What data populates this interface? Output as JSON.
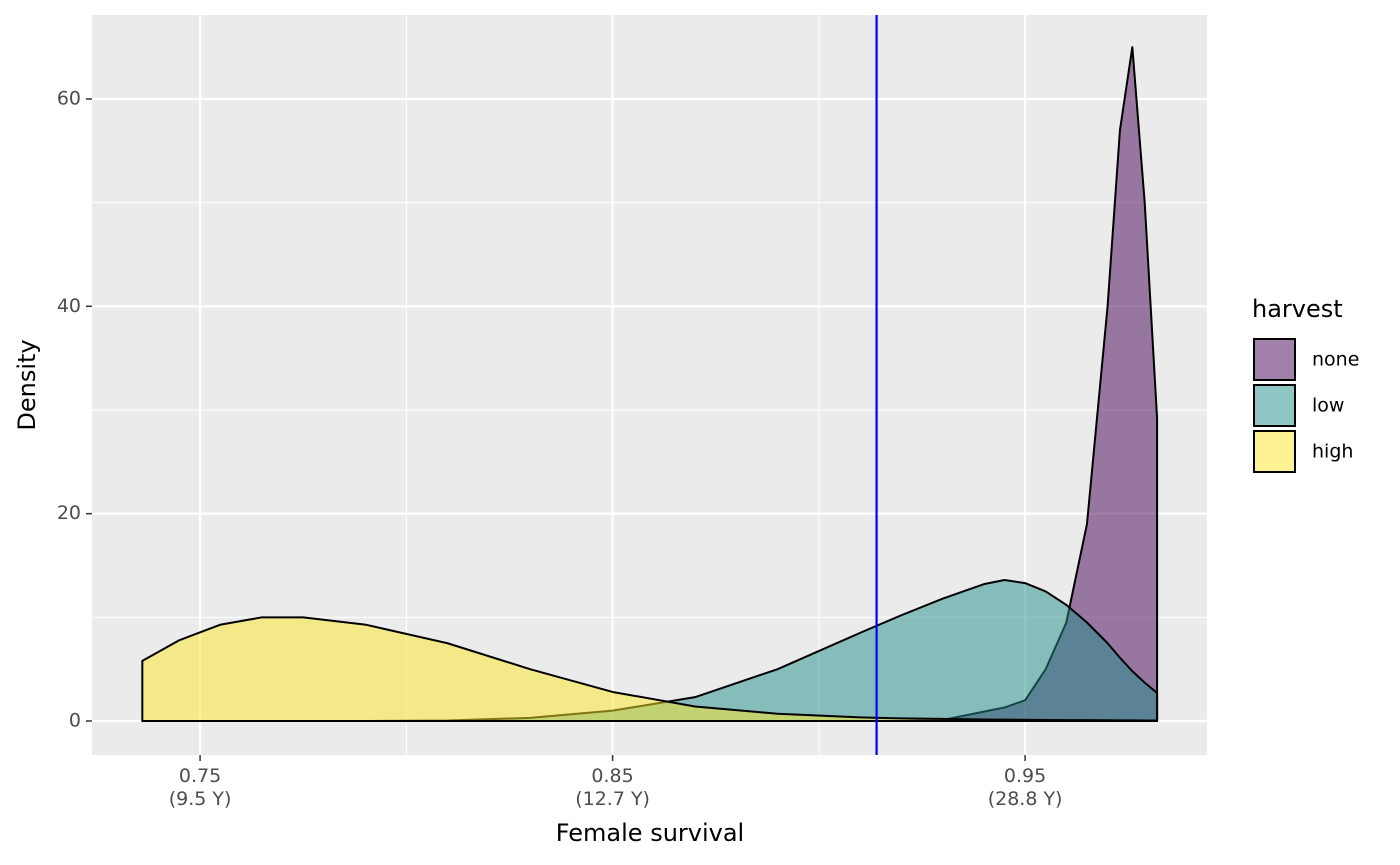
{
  "chart_data": {
    "type": "density",
    "x_label": "Female survival",
    "y_label": "Density",
    "legend_title": "harvest",
    "x": [
      0.736,
      0.745,
      0.755,
      0.765,
      0.775,
      0.79,
      0.81,
      0.83,
      0.85,
      0.87,
      0.89,
      0.91,
      0.92,
      0.93,
      0.94,
      0.945,
      0.95,
      0.955,
      0.96,
      0.965,
      0.97,
      0.973,
      0.976,
      0.979,
      0.982
    ],
    "series": [
      {
        "name": "none",
        "color": "#440154",
        "values": [
          0,
          0,
          0,
          0,
          0,
          0,
          0,
          0,
          0,
          0,
          0,
          0,
          0,
          0.1,
          0.9,
          1.3,
          2.0,
          5.0,
          9.5,
          19,
          40,
          57,
          65,
          50,
          29.2
        ]
      },
      {
        "name": "low",
        "color": "#21908c",
        "values": [
          0,
          0,
          0,
          0,
          0,
          0,
          0.05,
          0.3,
          1.0,
          2.3,
          5.0,
          8.5,
          10.2,
          11.8,
          13.2,
          13.6,
          13.3,
          12.5,
          11.2,
          9.5,
          7.5,
          6.1,
          4.8,
          3.7,
          2.7
        ]
      },
      {
        "name": "high",
        "color": "#fde725",
        "values": [
          5.8,
          7.8,
          9.3,
          10.0,
          10.0,
          9.3,
          7.5,
          5.0,
          2.8,
          1.4,
          0.7,
          0.35,
          0.25,
          0.2,
          0.15,
          0.13,
          0.12,
          0.1,
          0.09,
          0.08,
          0.07,
          0.06,
          0.06,
          0.05,
          0.05
        ]
      }
    ],
    "fill_opacity": 0.5,
    "vline": {
      "value": 0.914,
      "color": "#0000ff"
    },
    "xlim": [
      0.7238,
      0.9941
    ],
    "ylim": [
      -3.28,
      68.1
    ],
    "xticks": [
      {
        "value": 0.75,
        "label": "0.75\n(9.5 Y)"
      },
      {
        "value": 0.85,
        "label": "0.85\n(12.7 Y)"
      },
      {
        "value": 0.95,
        "label": "0.95\n(28.8 Y)"
      }
    ],
    "yticks": [
      0,
      20,
      40,
      60
    ],
    "grid": true
  }
}
